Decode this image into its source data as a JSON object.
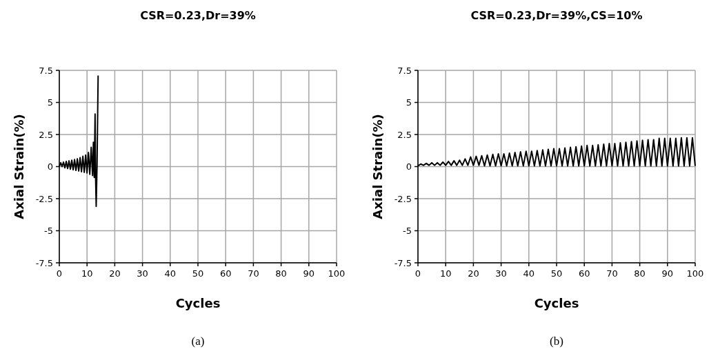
{
  "chart_data": [
    {
      "type": "line",
      "title": "CSR=0.23,Dr=39%",
      "xlabel": "Cycles",
      "ylabel": "Axial Strain(%)",
      "annotations": [
        "(a)"
      ],
      "series": [
        {
          "color": "#000000",
          "x": [
            0,
            0.5,
            1,
            1.5,
            2,
            2.5,
            3,
            3.5,
            4,
            4.5,
            5,
            5.5,
            6,
            6.5,
            7,
            7.5,
            8,
            8.5,
            9,
            9.5,
            10,
            10.5,
            11,
            11.5,
            12,
            12.3,
            12.6,
            12.9,
            13.1,
            13.3,
            13.6,
            14
          ],
          "values": [
            0,
            0.3,
            0,
            0.35,
            -0.1,
            0.4,
            -0.15,
            0.45,
            -0.2,
            0.5,
            -0.25,
            0.55,
            -0.3,
            0.6,
            -0.35,
            0.7,
            -0.4,
            0.8,
            -0.45,
            0.9,
            -0.5,
            1.1,
            -0.6,
            1.5,
            -0.7,
            1.9,
            -0.85,
            4.1,
            -1.0,
            -3.1,
            0,
            7.1
          ]
        }
      ],
      "xlim": [
        0,
        100
      ],
      "xticks": [
        0,
        10,
        20,
        30,
        40,
        50,
        60,
        70,
        80,
        90,
        100
      ],
      "ylim": [
        -7.5,
        7.5
      ],
      "yticks": [
        -7.5,
        -5,
        -2.5,
        0,
        2.5,
        5,
        7.5
      ],
      "grid": true,
      "marker": "none",
      "line_style": "solid"
    },
    {
      "type": "line",
      "title": "CSR=0.23,Dr=39%,CS=10%",
      "xlabel": "Cycles",
      "ylabel": "Axial Strain(%)",
      "annotations": [
        "(b)"
      ],
      "series": [
        {
          "color": "#000000",
          "x": [
            0,
            1,
            2,
            3,
            4,
            5,
            6,
            7,
            8,
            9,
            10,
            11,
            12,
            13,
            14,
            15,
            16,
            17,
            18,
            19,
            20,
            21,
            22,
            23,
            24,
            25,
            26,
            27,
            28,
            29,
            30,
            31,
            32,
            33,
            34,
            35,
            36,
            37,
            38,
            39,
            40,
            41,
            42,
            43,
            44,
            45,
            46,
            47,
            48,
            49,
            50,
            51,
            52,
            53,
            54,
            55,
            56,
            57,
            58,
            59,
            60,
            61,
            62,
            63,
            64,
            65,
            66,
            67,
            68,
            69,
            70,
            71,
            72,
            73,
            74,
            75,
            76,
            77,
            78,
            79,
            80,
            81,
            82,
            83,
            84,
            85,
            86,
            87,
            88,
            89,
            90,
            91,
            92,
            93,
            94,
            95,
            96,
            97,
            98,
            99,
            100
          ],
          "values": [
            0.05,
            0.2,
            0.1,
            0.25,
            0.1,
            0.3,
            0.1,
            0.3,
            0.1,
            0.35,
            0.1,
            0.4,
            0.1,
            0.45,
            0.1,
            0.5,
            0.1,
            0.6,
            0.1,
            0.75,
            0.1,
            0.8,
            0.1,
            0.85,
            0.05,
            0.9,
            0.05,
            0.95,
            0.05,
            1.0,
            0.05,
            1.0,
            0.05,
            1.05,
            0.05,
            1.1,
            0.05,
            1.15,
            0.05,
            1.2,
            0.05,
            1.2,
            0.05,
            1.25,
            0.05,
            1.3,
            0.05,
            1.35,
            0.05,
            1.4,
            0.05,
            1.4,
            0.05,
            1.45,
            0.05,
            1.5,
            0.05,
            1.55,
            0.05,
            1.6,
            0.05,
            1.65,
            0.05,
            1.65,
            0.05,
            1.7,
            0.05,
            1.75,
            0.05,
            1.8,
            0.05,
            1.8,
            0.05,
            1.85,
            0.05,
            1.9,
            0.05,
            1.95,
            0.05,
            2.0,
            0.05,
            2.05,
            0.05,
            2.1,
            0.05,
            2.1,
            0.05,
            2.2,
            0.05,
            2.2,
            0.05,
            2.2,
            0.05,
            2.2,
            0.05,
            2.25,
            0.05,
            2.25,
            0.05,
            2.25,
            0.05
          ]
        }
      ],
      "xlim": [
        0,
        100
      ],
      "xticks": [
        0,
        10,
        20,
        30,
        40,
        50,
        60,
        70,
        80,
        90,
        100
      ],
      "ylim": [
        -7.5,
        7.5
      ],
      "yticks": [
        -7.5,
        -5,
        -2.5,
        0,
        2.5,
        5,
        7.5
      ],
      "grid": true,
      "marker": "none",
      "line_style": "solid"
    }
  ]
}
